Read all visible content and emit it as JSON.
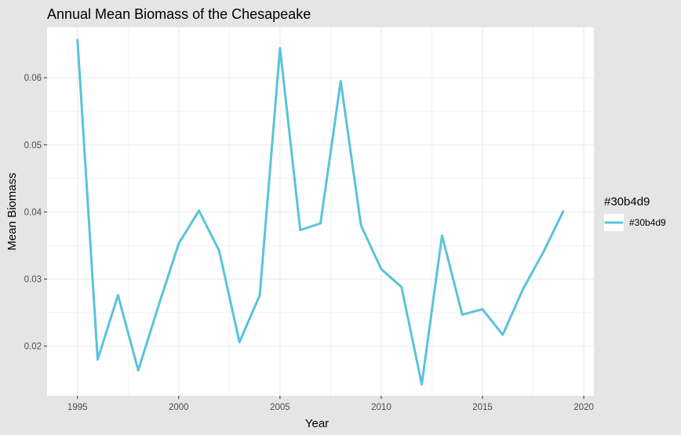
{
  "chart_data": {
    "type": "line",
    "title": "Annual Mean Biomass of the Chesapeake",
    "xlabel": "Year",
    "ylabel": "Mean Biomass",
    "xlim": [
      1993.5,
      2020.5
    ],
    "ylim": [
      0.0126,
      0.0675
    ],
    "xticks": [
      1995,
      2000,
      2005,
      2010,
      2015,
      2020
    ],
    "xtick_labels": [
      "1995",
      "2000",
      "2005",
      "2010",
      "2015",
      "2020"
    ],
    "yticks": [
      0.02,
      0.03,
      0.04,
      0.05,
      0.06
    ],
    "ytick_labels": [
      "0.02",
      "0.03",
      "0.04",
      "0.05",
      "0.06"
    ],
    "grid": true,
    "legend": {
      "title": "#30b4d9",
      "position": "right",
      "entries": [
        "#30b4d9"
      ]
    },
    "series": [
      {
        "name": "#30b4d9",
        "color": "#5ac3dc",
        "x": [
          1995,
          1996,
          1997,
          1998,
          1999,
          2000,
          2001,
          2002,
          2003,
          2004,
          2005,
          2006,
          2007,
          2008,
          2009,
          2010,
          2011,
          2012,
          2013,
          2014,
          2015,
          2016,
          2017,
          2018,
          2019
        ],
        "y": [
          0.0658,
          0.018,
          0.0276,
          0.0164,
          0.026,
          0.0353,
          0.0402,
          0.0342,
          0.0206,
          0.0276,
          0.0644,
          0.0373,
          0.0383,
          0.0595,
          0.038,
          0.0315,
          0.0288,
          0.0143,
          0.0365,
          0.0247,
          0.0255,
          0.0217,
          0.0285,
          0.034,
          0.0402
        ]
      }
    ]
  },
  "colors": {
    "background": "#e5e5e5",
    "panel": "#ffffff",
    "grid": "#ebebeb",
    "line": "#5ac3dc"
  }
}
